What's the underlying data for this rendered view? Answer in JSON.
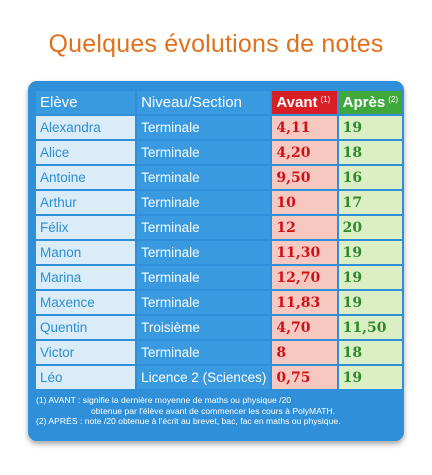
{
  "title": "Quelques évolutions de notes",
  "columns": {
    "name": "Elève",
    "level": "Niveau/Section",
    "before": "Avant",
    "before_mark": "(1)",
    "after": "Après",
    "after_mark": "(2)"
  },
  "rows": [
    {
      "name": "Alexandra",
      "level": "Terminale",
      "before": "4,11",
      "after": "19"
    },
    {
      "name": "Alice",
      "level": "Terminale",
      "before": "4,20",
      "after": "18"
    },
    {
      "name": "Antoine",
      "level": "Terminale",
      "before": "9,50",
      "after": "16"
    },
    {
      "name": "Arthur",
      "level": "Terminale",
      "before": "10",
      "after": "17"
    },
    {
      "name": "Félix",
      "level": "Terminale",
      "before": "12",
      "after": "20"
    },
    {
      "name": "Manon",
      "level": "Terminale",
      "before": "11,30",
      "after": "19"
    },
    {
      "name": "Marina",
      "level": "Terminale",
      "before": "12,70",
      "after": "19"
    },
    {
      "name": "Maxence",
      "level": "Terminale",
      "before": "11,83",
      "after": "19"
    },
    {
      "name": "Quentin",
      "level": "Troisième",
      "before": "4,70",
      "after": "11,50"
    },
    {
      "name": "Victor",
      "level": "Terminale",
      "before": "8",
      "after": "18"
    },
    {
      "name": "Léo",
      "level": "Licence 2 (Sciences)",
      "before": "0,75",
      "after": "19"
    }
  ],
  "notes": {
    "line1": "(1) AVANT : signifie la dernière moyenne de maths ou physique /20",
    "line2": "obtenue par l'élève avant de commencer les cours à PolyMATH.",
    "line3": "(2) APRÈS : note /20 obtenue à l'écrit au brevet, bac, fac en maths ou physique."
  },
  "colors": {
    "title": "#e0701c",
    "panel": "#2f8fd8",
    "before_header": "#d81f26",
    "after_header": "#3ea83a"
  }
}
